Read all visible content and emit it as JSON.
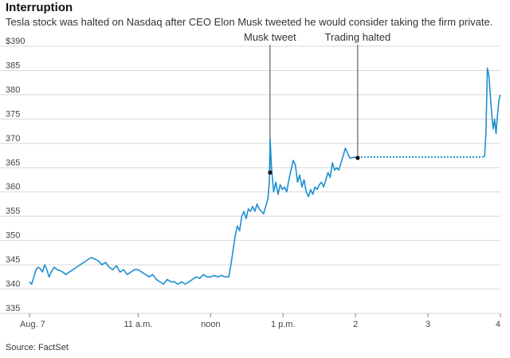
{
  "chart_data": {
    "type": "line",
    "title": "Interruption",
    "subtitle": "Tesla stock was halted on Nasdaq after CEO Elon Musk tweeted he would consider taking the firm private.",
    "source": "Source: FactSet",
    "x_tick_labels": [
      "Aug. 7",
      "11 a.m.",
      "noon",
      "1 p.m.",
      "2",
      "3",
      "4"
    ],
    "x_tick_times": [
      9.5,
      11,
      12,
      13,
      14,
      15,
      16
    ],
    "xlim": [
      9.5,
      16
    ],
    "y_tick_labels": [
      "335",
      "340",
      "345",
      "350",
      "355",
      "360",
      "365",
      "370",
      "375",
      "380",
      "385",
      "$390"
    ],
    "y_tick_values": [
      335,
      340,
      345,
      350,
      355,
      360,
      365,
      370,
      375,
      380,
      385,
      390
    ],
    "ylim": [
      335,
      390
    ],
    "grid": true,
    "line_color": "#1f8fcf",
    "series": [
      {
        "values": [
          [
            9.5,
            341.5
          ],
          [
            9.53,
            341.0
          ],
          [
            9.56,
            342.5
          ],
          [
            9.59,
            344.0
          ],
          [
            9.62,
            344.5
          ],
          [
            9.65,
            344.2
          ],
          [
            9.68,
            343.5
          ],
          [
            9.71,
            345.0
          ],
          [
            9.74,
            344.0
          ],
          [
            9.77,
            342.5
          ],
          [
            9.8,
            343.5
          ],
          [
            9.84,
            344.5
          ],
          [
            9.88,
            344.0
          ],
          [
            9.92,
            343.8
          ],
          [
            9.96,
            343.5
          ],
          [
            10.0,
            343.0
          ],
          [
            10.05,
            343.5
          ],
          [
            10.1,
            344.0
          ],
          [
            10.15,
            344.5
          ],
          [
            10.2,
            345.0
          ],
          [
            10.25,
            345.5
          ],
          [
            10.3,
            346.0
          ],
          [
            10.35,
            346.5
          ],
          [
            10.4,
            346.2
          ],
          [
            10.45,
            345.8
          ],
          [
            10.5,
            345.0
          ],
          [
            10.55,
            345.5
          ],
          [
            10.6,
            344.5
          ],
          [
            10.65,
            344.0
          ],
          [
            10.7,
            344.8
          ],
          [
            10.75,
            343.5
          ],
          [
            10.8,
            344.0
          ],
          [
            10.85,
            343.0
          ],
          [
            10.9,
            343.5
          ],
          [
            10.95,
            344.0
          ],
          [
            11.0,
            344.0
          ],
          [
            11.05,
            343.5
          ],
          [
            11.1,
            343.0
          ],
          [
            11.15,
            342.5
          ],
          [
            11.2,
            343.0
          ],
          [
            11.25,
            342.0
          ],
          [
            11.3,
            341.5
          ],
          [
            11.35,
            341.0
          ],
          [
            11.4,
            342.0
          ],
          [
            11.45,
            341.5
          ],
          [
            11.5,
            341.5
          ],
          [
            11.55,
            341.0
          ],
          [
            11.6,
            341.5
          ],
          [
            11.65,
            341.0
          ],
          [
            11.7,
            341.5
          ],
          [
            11.75,
            342.0
          ],
          [
            11.8,
            342.5
          ],
          [
            11.85,
            342.2
          ],
          [
            11.9,
            343.0
          ],
          [
            11.95,
            342.5
          ],
          [
            12.0,
            342.5
          ],
          [
            12.05,
            342.8
          ],
          [
            12.1,
            342.5
          ],
          [
            12.15,
            342.8
          ],
          [
            12.2,
            342.5
          ],
          [
            12.25,
            342.5
          ],
          [
            12.28,
            345.0
          ],
          [
            12.31,
            348.0
          ],
          [
            12.34,
            351.0
          ],
          [
            12.37,
            353.0
          ],
          [
            12.4,
            352.0
          ],
          [
            12.43,
            355.0
          ],
          [
            12.46,
            356.0
          ],
          [
            12.49,
            354.5
          ],
          [
            12.52,
            356.5
          ],
          [
            12.55,
            356.0
          ],
          [
            12.58,
            357.0
          ],
          [
            12.61,
            356.0
          ],
          [
            12.64,
            357.5
          ],
          [
            12.67,
            356.5
          ],
          [
            12.7,
            356.0
          ],
          [
            12.73,
            355.5
          ],
          [
            12.76,
            357.0
          ],
          [
            12.79,
            358.5
          ],
          [
            12.81,
            362.0
          ],
          [
            12.82,
            371.0
          ],
          [
            12.84,
            365.0
          ],
          [
            12.87,
            360.0
          ],
          [
            12.9,
            362.0
          ],
          [
            12.93,
            359.5
          ],
          [
            12.96,
            361.5
          ],
          [
            12.99,
            360.5
          ],
          [
            13.02,
            361.0
          ],
          [
            13.05,
            360.0
          ],
          [
            13.08,
            362.5
          ],
          [
            13.11,
            364.5
          ],
          [
            13.14,
            366.5
          ],
          [
            13.17,
            365.5
          ],
          [
            13.2,
            362.0
          ],
          [
            13.23,
            363.5
          ],
          [
            13.26,
            361.0
          ],
          [
            13.29,
            362.5
          ],
          [
            13.32,
            360.0
          ],
          [
            13.35,
            359.0
          ],
          [
            13.38,
            360.5
          ],
          [
            13.41,
            359.5
          ],
          [
            13.44,
            361.0
          ],
          [
            13.47,
            360.5
          ],
          [
            13.5,
            361.5
          ],
          [
            13.53,
            362.0
          ],
          [
            13.56,
            361.0
          ],
          [
            13.59,
            362.5
          ],
          [
            13.62,
            364.0
          ],
          [
            13.65,
            363.0
          ],
          [
            13.68,
            366.0
          ],
          [
            13.71,
            364.5
          ],
          [
            13.74,
            365.0
          ],
          [
            13.77,
            364.5
          ],
          [
            13.8,
            366.0
          ],
          [
            13.83,
            367.5
          ],
          [
            13.86,
            369.0
          ],
          [
            13.89,
            368.0
          ],
          [
            13.92,
            367.0
          ],
          [
            14.03,
            367.2
          ],
          [
            14.5,
            367.2
          ],
          [
            15.0,
            367.2
          ],
          [
            15.5,
            367.2
          ],
          [
            15.78,
            367.2
          ],
          [
            15.8,
            372.0
          ],
          [
            15.82,
            385.5
          ],
          [
            15.84,
            384.0
          ],
          [
            15.86,
            380.0
          ],
          [
            15.88,
            376.0
          ],
          [
            15.9,
            373.0
          ],
          [
            15.92,
            375.0
          ],
          [
            15.94,
            372.0
          ],
          [
            15.96,
            376.0
          ],
          [
            15.98,
            379.0
          ],
          [
            16.0,
            380.0
          ]
        ],
        "halted_after_x": 14.03
      }
    ],
    "annotations": [
      {
        "label": "Musk tweet",
        "x": 12.82,
        "y": 364
      },
      {
        "label": "Trading halted",
        "x": 14.03,
        "y": 367
      }
    ]
  }
}
